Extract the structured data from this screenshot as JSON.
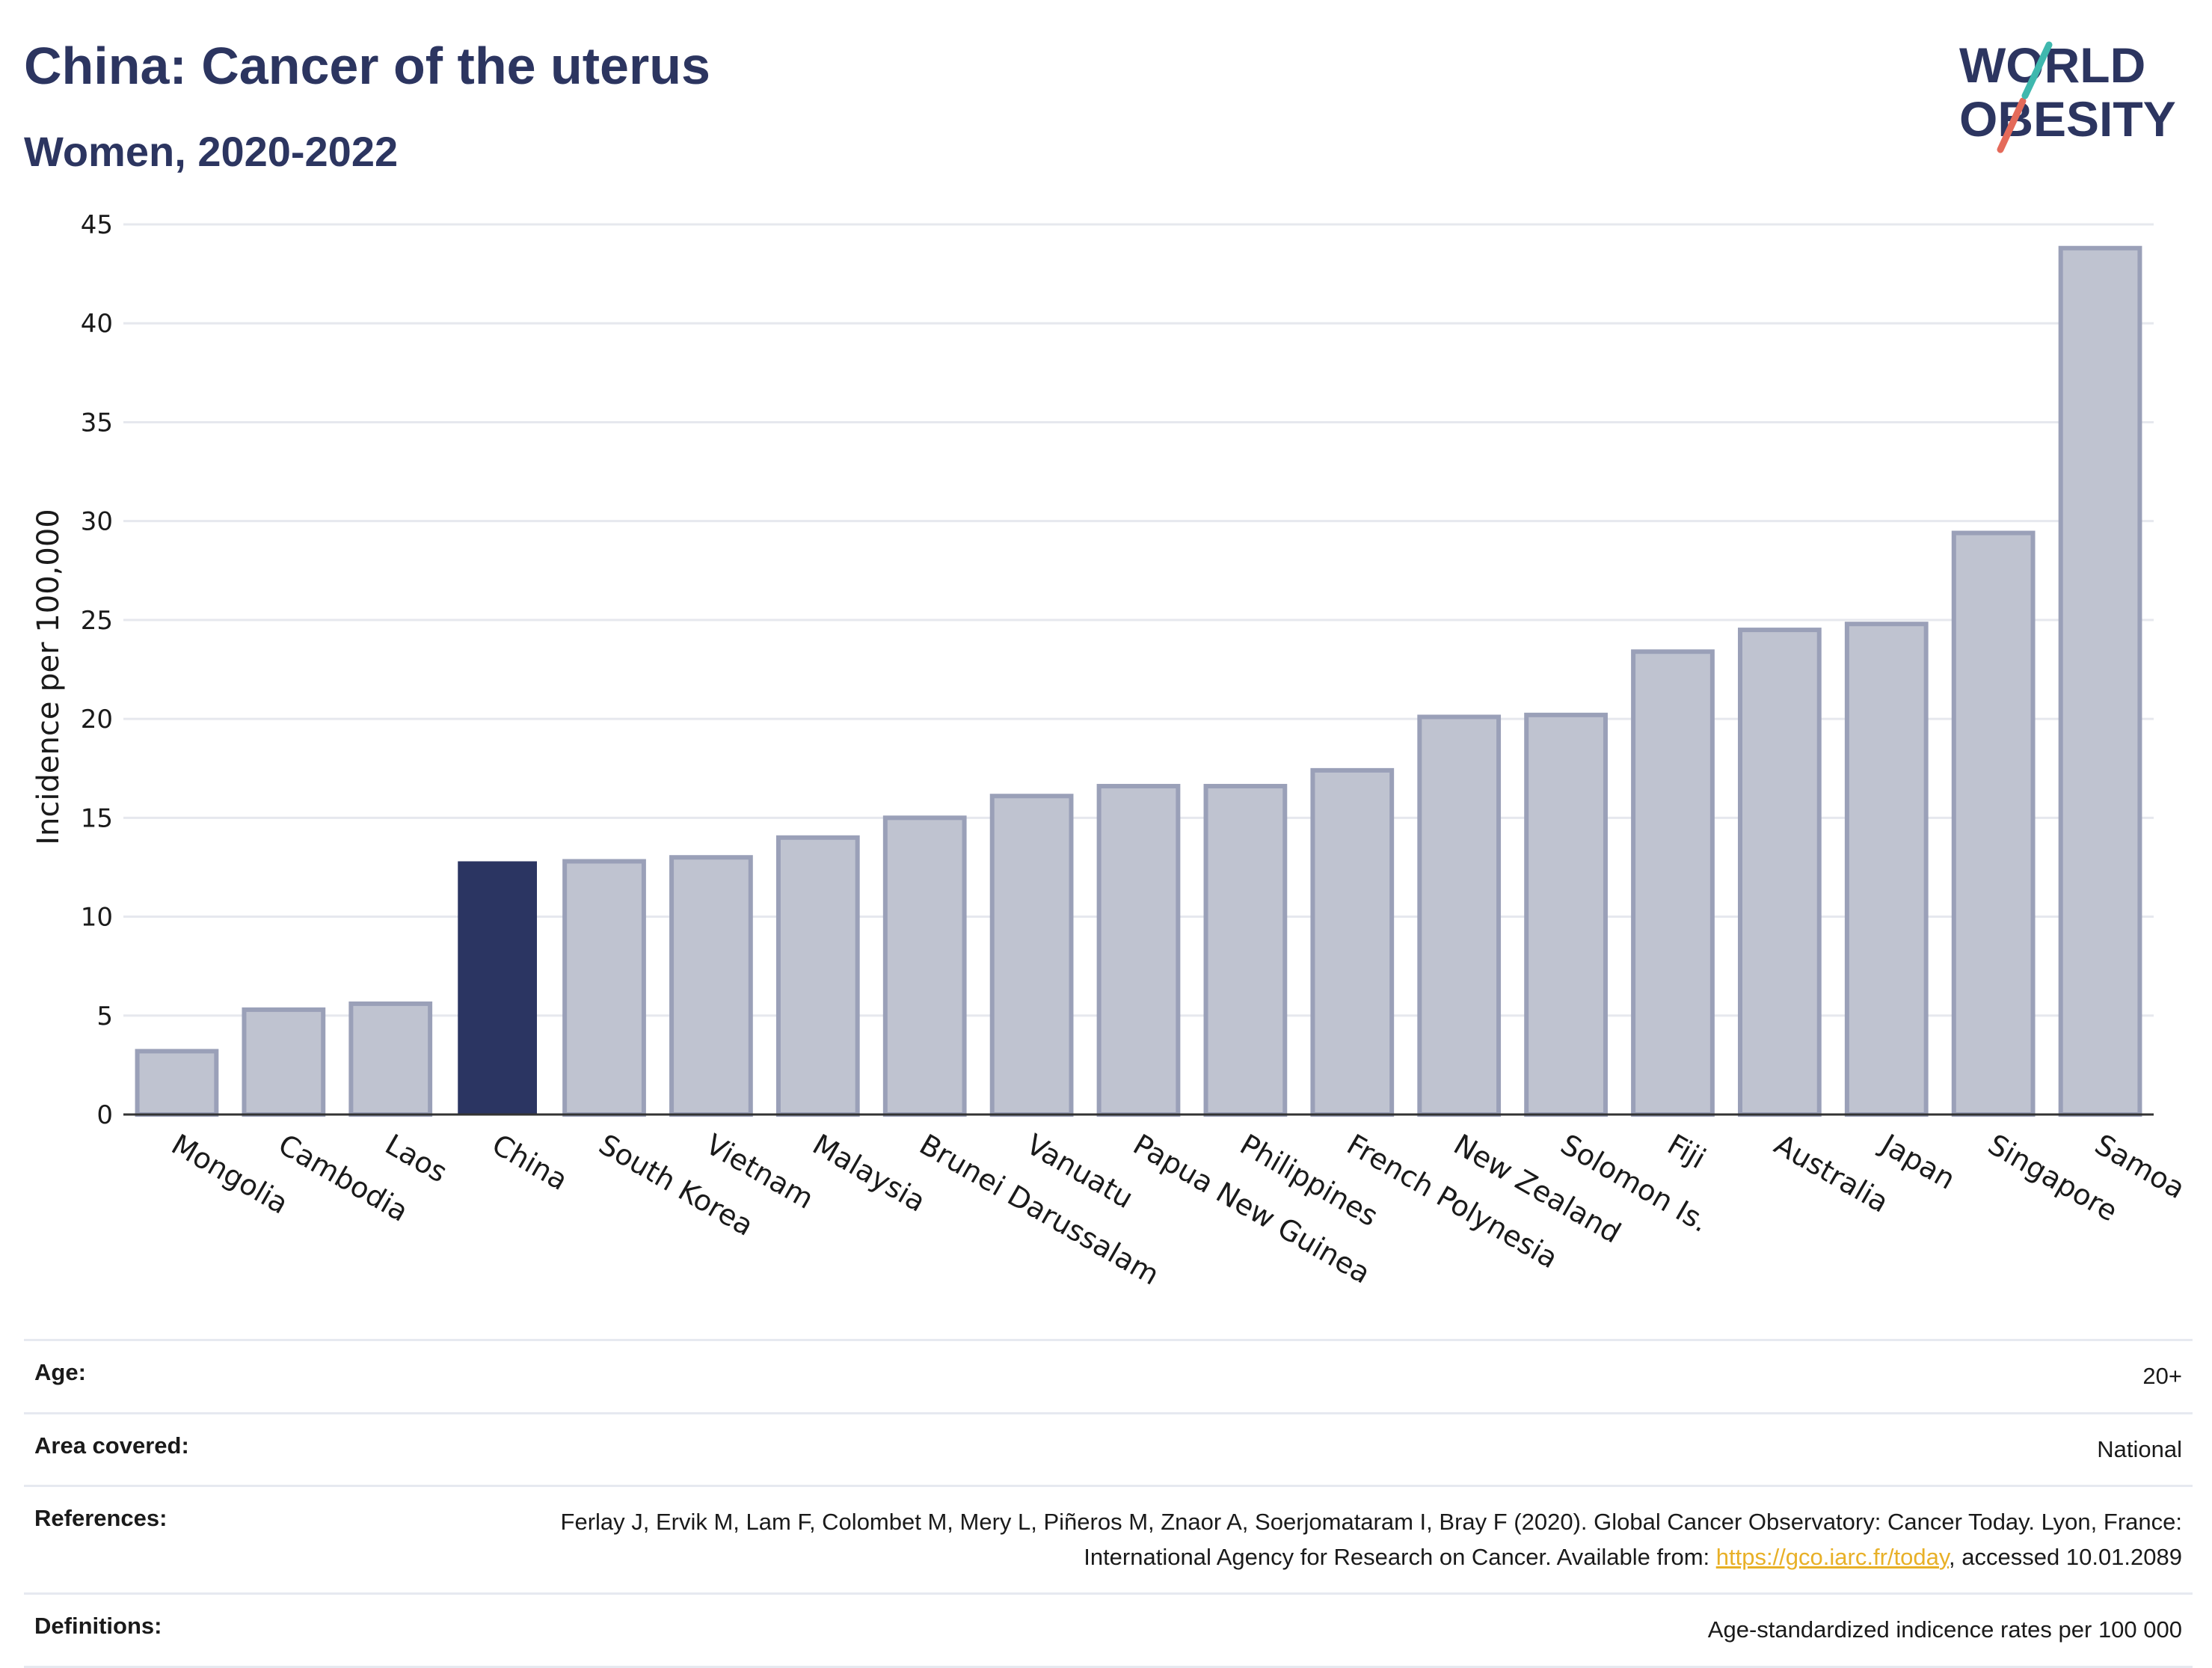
{
  "title": "China: Cancer of the uterus",
  "subtitle": "Women, 2020-2022",
  "logo": {
    "line1": "WORLD",
    "line2": "OBESITY"
  },
  "colors": {
    "highlight": "#2b3562",
    "bar": "#bfc3d0",
    "bar_border": "#9aa0b8",
    "link": "#e8b027"
  },
  "chart_data": {
    "type": "bar",
    "ylabel": "Incidence per 100,000",
    "xlabel": "",
    "ylim": [
      0,
      45
    ],
    "yticks": [
      0,
      5,
      10,
      15,
      20,
      25,
      30,
      35,
      40,
      45
    ],
    "grid": true,
    "highlight": "China",
    "categories": [
      "Mongolia",
      "Cambodia",
      "Laos",
      "China",
      "South Korea",
      "Vietnam",
      "Malaysia",
      "Brunei Darussalam",
      "Vanuatu",
      "Papua New Guinea",
      "Philippines",
      "French Polynesia",
      "New Zealand",
      "Solomon Is.",
      "Fiji",
      "Australia",
      "Japan",
      "Singapore",
      "Samoa"
    ],
    "values": [
      3.2,
      5.3,
      5.6,
      12.8,
      12.8,
      13.0,
      14.0,
      15.0,
      16.1,
      16.6,
      16.6,
      17.4,
      20.1,
      20.2,
      23.4,
      24.5,
      24.8,
      29.4,
      43.8
    ]
  },
  "meta": {
    "age_label": "Age:",
    "age_value": "20+",
    "area_label": "Area covered:",
    "area_value": "National",
    "references_label": "References:",
    "references_text": "Ferlay J, Ervik M, Lam F, Colombet M, Mery L, Piñeros M, Znaor A, Soerjomataram I, Bray F (2020). Global Cancer Observatory: Cancer Today. Lyon, France: International Agency for Research on Cancer. Available from: ",
    "references_link": "https://gco.iarc.fr/today",
    "references_suffix": ", accessed 10.01.2089",
    "definitions_label": "Definitions:",
    "definitions_value": "Age-standardized indicence rates per 100 000"
  }
}
